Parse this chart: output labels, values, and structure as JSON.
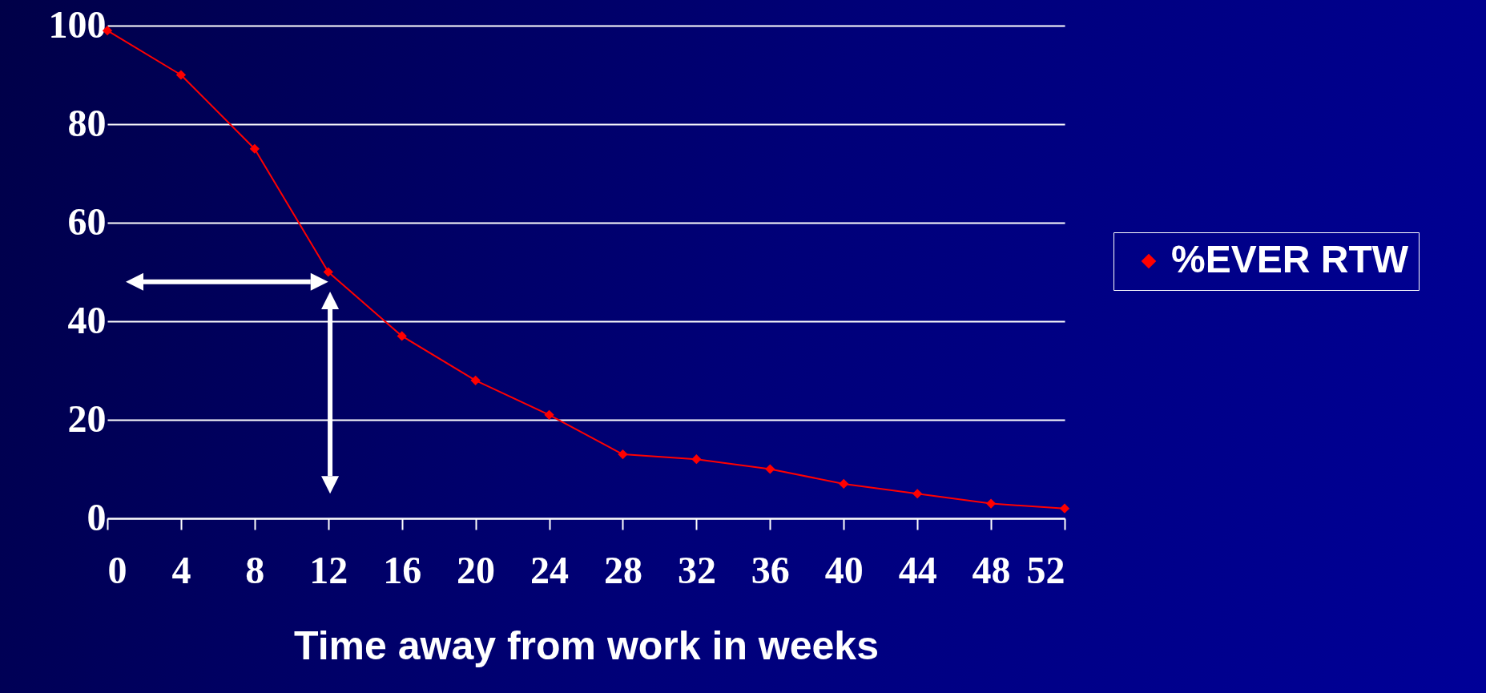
{
  "chart_data": {
    "type": "line",
    "xlabel": "Time away from work in weeks",
    "x": [
      0,
      4,
      8,
      12,
      16,
      20,
      24,
      28,
      32,
      36,
      40,
      44,
      48,
      52
    ],
    "series": [
      {
        "name": "%EVER RTW",
        "color": "#ff0000",
        "values": [
          99,
          90,
          75,
          50,
          37,
          28,
          21,
          13,
          12,
          10,
          7,
          5,
          3,
          2
        ]
      }
    ],
    "xlim": [
      0,
      52
    ],
    "xticks": [
      0,
      4,
      8,
      12,
      16,
      20,
      24,
      28,
      32,
      36,
      40,
      44,
      48,
      52
    ],
    "ylim": [
      0,
      100
    ],
    "yticks": [
      0,
      20,
      40,
      60,
      80,
      100
    ],
    "grid": "y",
    "legend": "right",
    "marker": "diamond",
    "line_style": "solid"
  }
}
